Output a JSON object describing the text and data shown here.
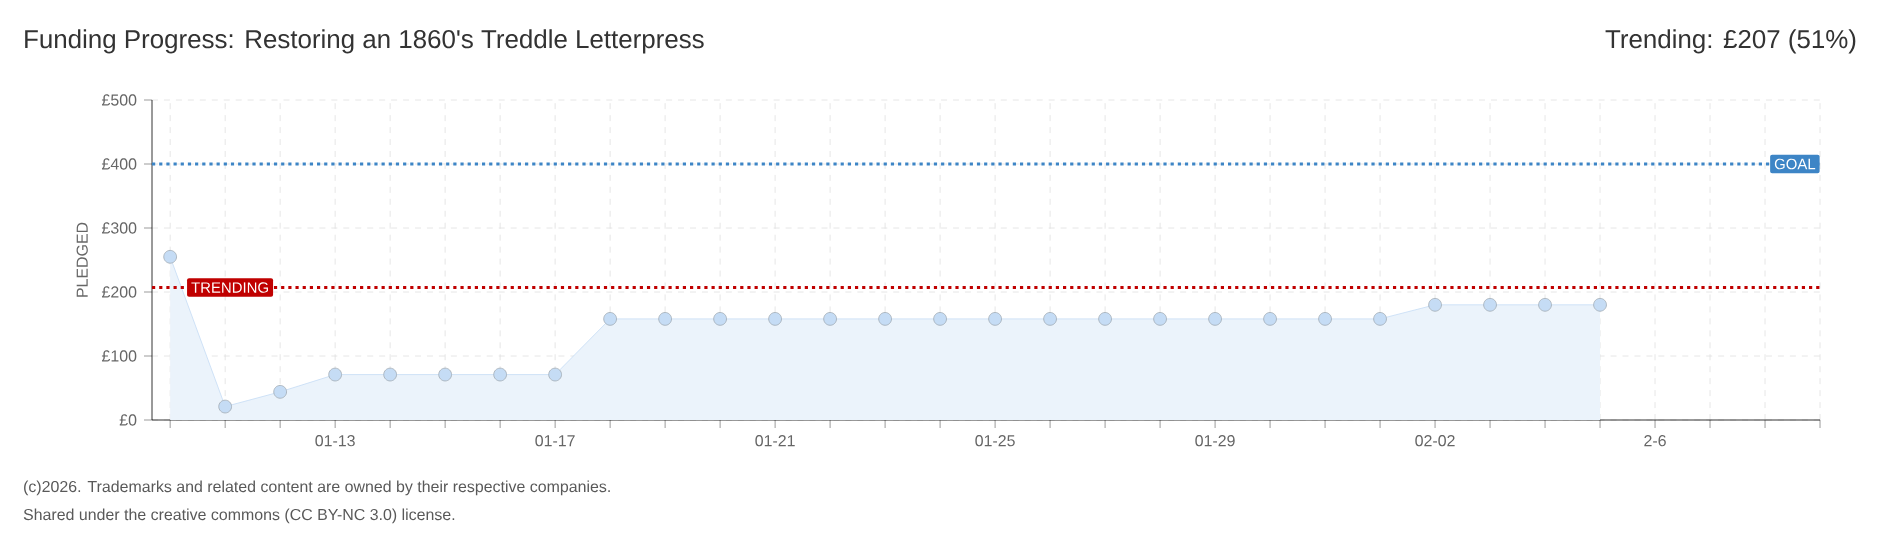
{
  "chart_data": {
    "type": "area",
    "title": "Funding Progress: Restoring an 1860's Treddle Letterpress",
    "subtitle": "Trending: £207 (51%)",
    "ylabel": "PLEDGED",
    "categories": [
      null,
      null,
      null,
      "01-13",
      null,
      null,
      null,
      "01-17",
      null,
      null,
      null,
      "01-21",
      null,
      null,
      null,
      "01-25",
      null,
      null,
      null,
      "01-29",
      null,
      null,
      null,
      "02-02",
      null,
      null,
      null,
      "2-6",
      null,
      null,
      null
    ],
    "series": [
      {
        "color": "#c5dcf5",
        "values": [
          255,
          21,
          44,
          71,
          71,
          71,
          71,
          71,
          158,
          158,
          158,
          158,
          158,
          158,
          158,
          158,
          158,
          158,
          158,
          158,
          158,
          158,
          158,
          180,
          180,
          180,
          180,
          null,
          null,
          null,
          null
        ]
      }
    ],
    "ylim": [
      0,
      500
    ],
    "yticks": [
      {
        "value": 0,
        "label": "£0"
      },
      {
        "value": 100,
        "label": "£100"
      },
      {
        "value": 200,
        "label": "£200"
      },
      {
        "value": 300,
        "label": "£300"
      },
      {
        "value": 400,
        "label": "£400"
      },
      {
        "value": 500,
        "label": "£500"
      }
    ],
    "ref_lines": [
      {
        "axis": "y",
        "value": 400,
        "label": "GOAL",
        "color": "#3d85c6",
        "line_style": "dotted"
      },
      {
        "axis": "y",
        "value": 207,
        "label": "TRENDING",
        "color": "#c00000",
        "line_style": "dotted"
      }
    ],
    "grid": true,
    "marker": "circle",
    "annotations": [
      "(c)2026. Trademarks and related content are owned by their respective companies.",
      "Shared under the creative commons (CC BY-NC 3.0) license."
    ]
  }
}
